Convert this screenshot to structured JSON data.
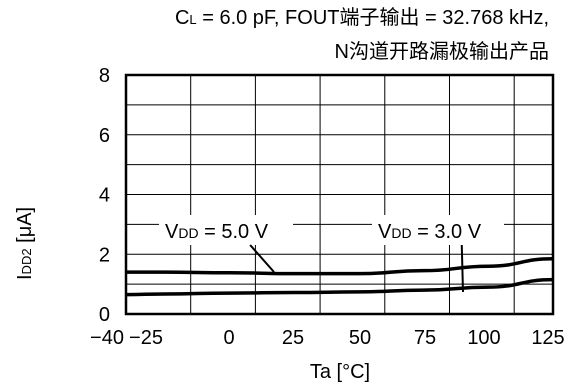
{
  "header": {
    "line1_prefix": "C",
    "line1_sub": "L",
    "line1_rest": " = 6.0 pF, FOUT端子输出  = 32.768 kHz,",
    "line2": "N沟道开路漏极输出产品"
  },
  "chart_data": {
    "type": "line",
    "xlabel": "Ta [°C]",
    "ylabel_main": "I",
    "ylabel_sub": "DD2",
    "ylabel_unit": " [μA]",
    "xlim": [
      -40,
      125
    ],
    "ylim": [
      0,
      8
    ],
    "x_ticks": [
      -40,
      -25,
      0,
      25,
      50,
      75,
      100,
      125
    ],
    "x_tick_labels": [
      "−40",
      "−25",
      "0",
      "25",
      "50",
      "75",
      "100",
      "125"
    ],
    "y_ticks": [
      0,
      2,
      4,
      6,
      8
    ],
    "y_tick_labels": [
      "0",
      "2",
      "4",
      "6",
      "8"
    ],
    "grid": true,
    "series": [
      {
        "name": "VDD = 5.0 V",
        "label_main": "V",
        "label_sub": "DD",
        "label_rest": " = 5.0 V",
        "x": [
          -40,
          -25,
          0,
          25,
          50,
          75,
          100,
          125
        ],
        "y": [
          1.4,
          1.4,
          1.38,
          1.35,
          1.35,
          1.45,
          1.6,
          1.85
        ]
      },
      {
        "name": "VDD = 3.0 V",
        "label_main": "V",
        "label_sub": "DD",
        "label_rest": " = 3.0 V",
        "x": [
          -40,
          -25,
          0,
          25,
          50,
          75,
          100,
          125
        ],
        "y": [
          0.65,
          0.67,
          0.7,
          0.72,
          0.74,
          0.8,
          0.9,
          1.15
        ]
      }
    ]
  }
}
